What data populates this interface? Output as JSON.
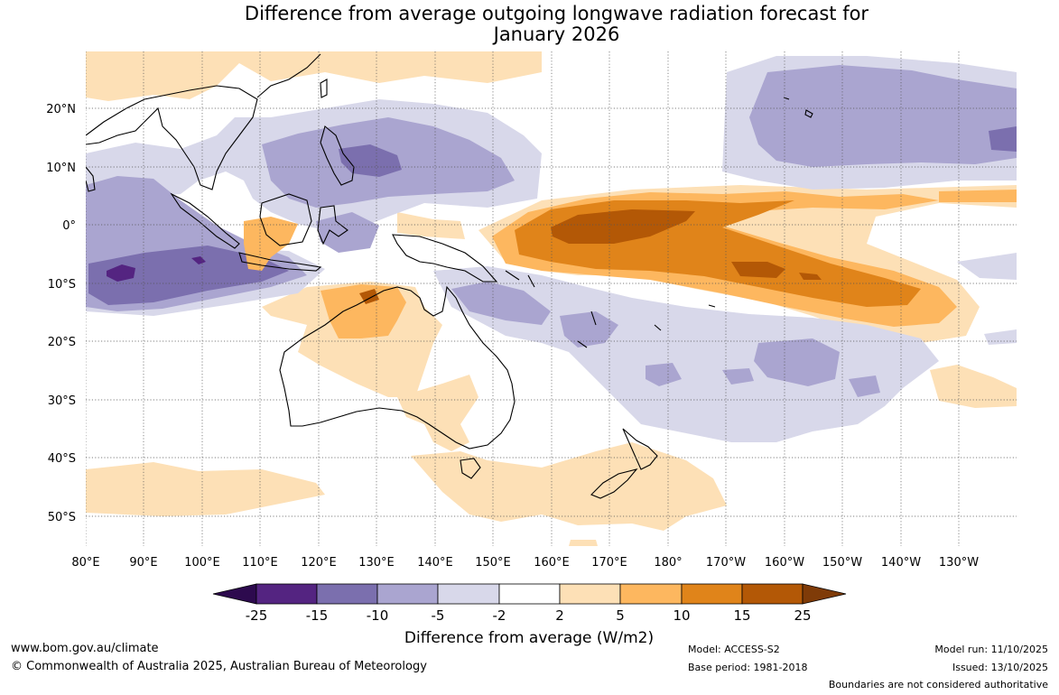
{
  "title": {
    "line1": "Difference from average outgoing longwave radiation forecast for",
    "line2": "January 2026"
  },
  "axes": {
    "lon_labels": [
      "80°E",
      "90°E",
      "100°E",
      "110°E",
      "120°E",
      "130°E",
      "140°E",
      "150°E",
      "160°E",
      "170°E",
      "180°",
      "170°W",
      "160°W",
      "150°W",
      "140°W",
      "130°W"
    ],
    "lat_labels": [
      "20°N",
      "10°N",
      "0°",
      "10°S",
      "20°S",
      "30°S",
      "40°S",
      "50°S"
    ]
  },
  "legend": {
    "colors": {
      "lt_m25": "#2d0a4e",
      "m25_m15": "#542481",
      "m15_m10": "#7b6fae",
      "m10_m5": "#aaa5d0",
      "m5_m2": "#d8d8ea",
      "m2_2": "#ffffff",
      "p2_5": "#fde0b6",
      "p5_10": "#fdb75f",
      "p10_15": "#e0841a",
      "p15_25": "#b35806",
      "gt_25": "#7f3b08"
    },
    "ticks": [
      "-25",
      "-15",
      "-10",
      "-5",
      "-2",
      "2",
      "5",
      "10",
      "15",
      "25"
    ],
    "label": "Difference from average (W/m2)"
  },
  "footer": {
    "website": "www.bom.gov.au/climate",
    "copyright": "© Commonwealth of Australia 2025, Australian Bureau of Meteorology",
    "model": "Model: ACCESS-S2",
    "base_period": "Base period: 1981-2018",
    "model_run": "Model run: 11/10/2025",
    "issued": "Issued: 13/10/2025",
    "disclaimer": "Boundaries are not considered authoritative"
  }
}
